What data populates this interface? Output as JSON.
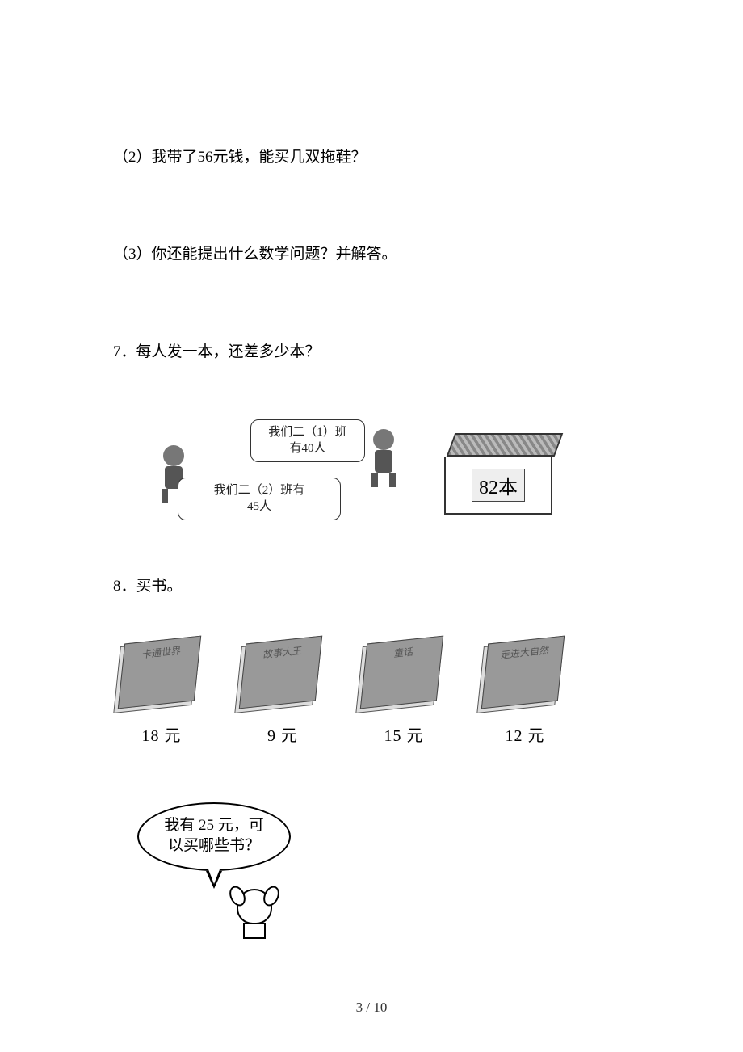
{
  "q2": {
    "text": "（2）我带了56元钱，能买几双拖鞋？"
  },
  "q3": {
    "text": "（3）你还能提出什么数学问题？并解答。"
  },
  "q7": {
    "title": "7．每人发一本，还差多少本？",
    "bubble_class1": "我们二（1）班\n有40人",
    "bubble_class2": "我们二（2）班有\n45人",
    "stack_label": "82本"
  },
  "q8": {
    "title": "8．买书。",
    "books": [
      {
        "title": "卡通世界",
        "price": "18 元"
      },
      {
        "title": "故事大王",
        "price": "9 元"
      },
      {
        "title": "童话",
        "price": "15 元"
      },
      {
        "title": "走进大自然",
        "price": "12 元"
      }
    ],
    "bubble": "我有 25 元，可\n以买哪些书？"
  },
  "footer": {
    "page": "3 / 10"
  },
  "colors": {
    "text": "#000000",
    "bg": "#ffffff",
    "figure_gray": "#999999",
    "border": "#333333"
  }
}
